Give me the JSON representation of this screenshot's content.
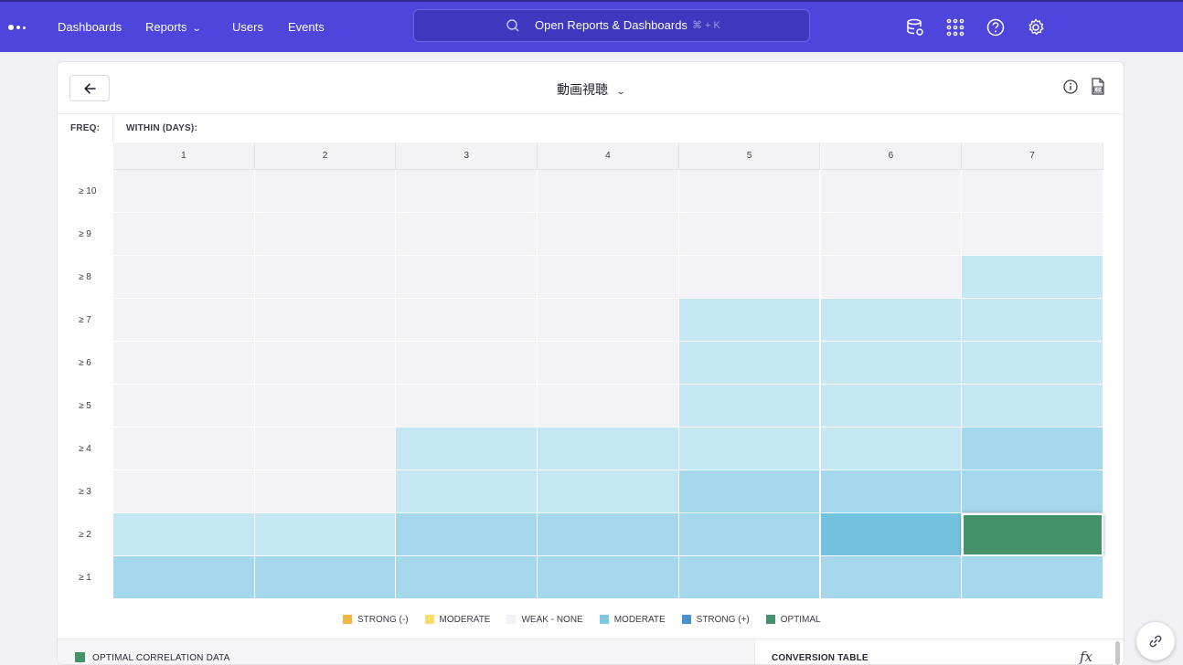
{
  "nav": {
    "logo_icon": "product-logo-icon",
    "links": [
      {
        "label": "Dashboards"
      },
      {
        "label": "Reports",
        "has_dropdown": true
      },
      {
        "label": "Users"
      },
      {
        "label": "Events"
      }
    ],
    "search": {
      "placeholder": "Open Reports & Dashboards",
      "shortcut": "⌘ + K",
      "icon": "search-icon"
    },
    "right_icons": [
      "data-management-icon",
      "apps-grid-icon",
      "help-icon",
      "settings-icon"
    ]
  },
  "report": {
    "title": "動画視聴",
    "back_icon": "arrow-left-icon",
    "info_icon": "info-icon",
    "export_icon": "csv-export-icon",
    "freq_label": "FREQ:",
    "within_label": "WITHIN (DAYS):"
  },
  "heatmap": {
    "columns": [
      "1",
      "2",
      "3",
      "4",
      "5",
      "6",
      "7"
    ],
    "rows": [
      "≥ 10",
      "≥ 9",
      "≥ 8",
      "≥ 7",
      "≥ 6",
      "≥ 5",
      "≥ 4",
      "≥ 3",
      "≥ 2",
      "≥ 1"
    ],
    "cells": [
      [
        "weak",
        "weak",
        "weak",
        "weak",
        "weak",
        "weak",
        "weak"
      ],
      [
        "weak",
        "weak",
        "weak",
        "weak",
        "weak",
        "weak",
        "weak"
      ],
      [
        "weak",
        "weak",
        "weak",
        "weak",
        "weak",
        "weak",
        "mod1"
      ],
      [
        "weak",
        "weak",
        "weak",
        "weak",
        "mod1",
        "mod1",
        "mod1"
      ],
      [
        "weak",
        "weak",
        "weak",
        "weak",
        "mod1",
        "mod1",
        "mod1"
      ],
      [
        "weak",
        "weak",
        "weak",
        "weak",
        "mod1",
        "mod1",
        "mod1"
      ],
      [
        "weak",
        "weak",
        "mod1",
        "mod1",
        "mod1",
        "mod1",
        "mod2"
      ],
      [
        "weak",
        "weak",
        "mod1",
        "mod1",
        "mod2",
        "mod2",
        "mod2"
      ],
      [
        "mod1",
        "mod1",
        "mod2",
        "mod2",
        "mod2",
        "mod3",
        "optimal"
      ],
      [
        "mod2",
        "mod2",
        "mod2",
        "mod2",
        "mod2",
        "mod2",
        "mod2"
      ]
    ],
    "selected_cell": {
      "row": "≥ 2",
      "column": "7"
    },
    "colors": {
      "weak": "#f3f3f7",
      "mod1": "#c5e7f3",
      "mod2": "#a6d8ed",
      "mod3": "#73c3e0",
      "optimal": "#44916a"
    }
  },
  "legend": [
    {
      "label": "STRONG (-)",
      "color": "#f2b540"
    },
    {
      "label": "MODERATE",
      "color": "#f7dc6b"
    },
    {
      "label": "WEAK - NONE",
      "color": "#f3f3f7"
    },
    {
      "label": "MODERATE",
      "color": "#7ec8e3"
    },
    {
      "label": "STRONG (+)",
      "color": "#4a90d0"
    },
    {
      "label": "OPTIMAL",
      "color": "#44916a"
    }
  ],
  "bottom": {
    "optimal_label": "OPTIMAL CORRELATION DATA",
    "conversion_label": "CONVERSION TABLE",
    "fx_label": "fx"
  },
  "floating": {
    "link_icon": "link-icon"
  }
}
